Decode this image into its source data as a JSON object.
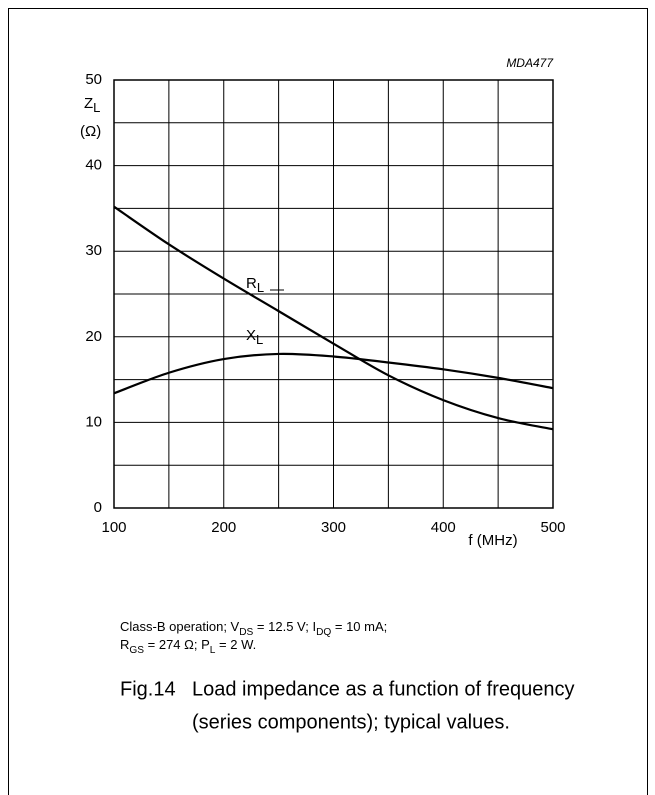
{
  "chart_data": {
    "type": "line",
    "code": "MDA477",
    "y_label": {
      "main": "Z",
      "sub": "L",
      "unit": "(Ω)"
    },
    "x_label": "f (MHz)",
    "x": [
      100,
      150,
      200,
      250,
      300,
      350,
      400,
      450,
      500
    ],
    "series": [
      {
        "name": "R",
        "name_sub": "L",
        "color": "#000000",
        "values": [
          35.2,
          30.8,
          26.8,
          23.0,
          19.2,
          15.5,
          12.6,
          10.5,
          9.2
        ]
      },
      {
        "name": "X",
        "name_sub": "L",
        "color": "#000000",
        "values": [
          13.4,
          15.8,
          17.4,
          18.0,
          17.7,
          17.0,
          16.2,
          15.2,
          14.0
        ]
      }
    ],
    "xlim": [
      100,
      500
    ],
    "ylim": [
      0,
      50
    ],
    "xticks": [
      100,
      200,
      300,
      400,
      500
    ],
    "yticks": [
      0,
      10,
      20,
      30,
      40,
      50
    ],
    "xgrid": [
      100,
      150,
      200,
      250,
      300,
      350,
      400,
      450,
      500
    ],
    "ygrid": [
      0,
      5,
      10,
      15,
      20,
      25,
      30,
      35,
      40,
      45,
      50
    ],
    "grid": true,
    "note": [
      [
        "Class-B operation; V",
        "DS",
        " = 12.5 V; I",
        "DQ",
        " = 10 mA;"
      ],
      [
        "R",
        "GS",
        " = 274 Ω; P",
        "L",
        " = 2 W."
      ]
    ],
    "figure_label": "Fig.14",
    "caption": [
      "Load impedance as a function of frequency",
      "(series components); typical values."
    ]
  }
}
